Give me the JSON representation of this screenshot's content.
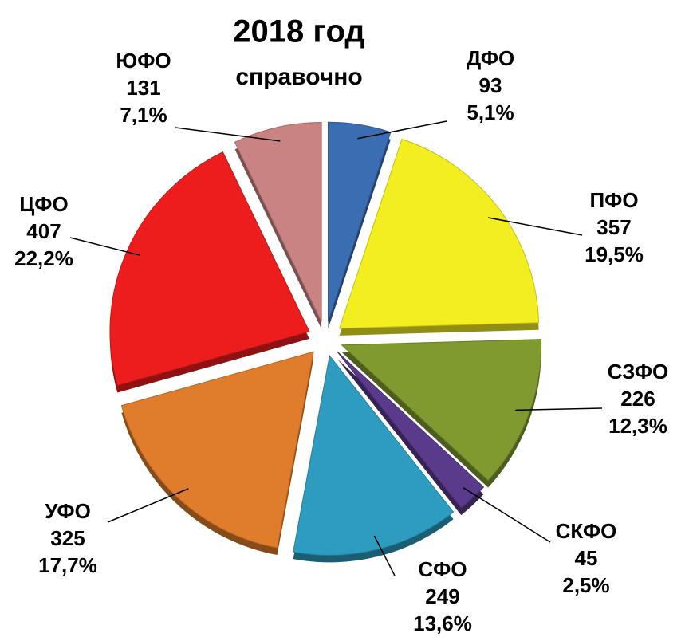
{
  "chart_data": {
    "type": "pie",
    "title": "2018 год",
    "subtitle": "справочно",
    "categories": [
      "ДФО",
      "ПФО",
      "СЗФО",
      "СКФО",
      "СФО",
      "УФО",
      "ЦФО",
      "ЮФО"
    ],
    "values": [
      93,
      357,
      226,
      45,
      249,
      325,
      407,
      131
    ],
    "percents": [
      5.1,
      19.5,
      12.3,
      2.5,
      13.6,
      17.7,
      22.2,
      7.1
    ],
    "percent_labels": [
      "5,1%",
      "19,5%",
      "12,3%",
      "2,5%",
      "13,6%",
      "17,7%",
      "22,2%",
      "7,1%"
    ],
    "colors": [
      "#3b6db3",
      "#f2ee1f",
      "#7f9b30",
      "#5a3a8a",
      "#2d9cc0",
      "#e07d2c",
      "#ee1d1d",
      "#c98383"
    ]
  }
}
